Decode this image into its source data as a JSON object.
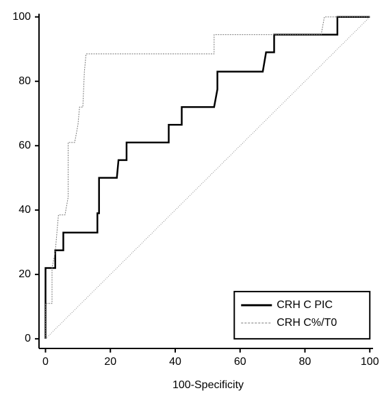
{
  "chart_data": {
    "type": "line",
    "xlabel": "100-Specificity",
    "xlim": [
      -2,
      101
    ],
    "ylim": [
      -3,
      101
    ],
    "xticks": [
      0,
      20,
      40,
      60,
      80,
      100
    ],
    "yticks": [
      0,
      20,
      40,
      60,
      80,
      100
    ],
    "legend": "lower right",
    "series": [
      {
        "name": "CRH C PIC",
        "color": "#000000",
        "x": [
          0,
          0,
          3,
          3,
          5.5,
          5.5,
          16,
          16,
          16.5,
          16.5,
          22,
          22.5,
          25,
          25,
          38,
          38,
          42,
          42,
          52,
          53,
          53,
          67,
          68,
          70.5,
          70.5,
          90,
          90,
          100
        ],
        "values": [
          0,
          22,
          22,
          27.5,
          27.5,
          33,
          33,
          39,
          39,
          50,
          50,
          55.5,
          55.5,
          61,
          61,
          66.5,
          66.5,
          72,
          72,
          77.5,
          83,
          83,
          89,
          89,
          94.5,
          94.5,
          100,
          100
        ]
      },
      {
        "name": "CRH C%/T0",
        "color": "#777777",
        "x": [
          0,
          0,
          2,
          2,
          3,
          4,
          6,
          7,
          7,
          9,
          10,
          10.5,
          11.5,
          12,
          12.5,
          52,
          52,
          85,
          86,
          100
        ],
        "values": [
          0,
          11,
          11,
          22,
          27,
          38.5,
          38.5,
          44,
          61,
          61,
          66.5,
          72,
          72,
          83,
          88.5,
          88.5,
          94.5,
          94.5,
          100,
          100
        ]
      }
    ],
    "reference_line": {
      "x": [
        0,
        100
      ],
      "values": [
        0,
        100
      ],
      "color": "#888888"
    }
  }
}
